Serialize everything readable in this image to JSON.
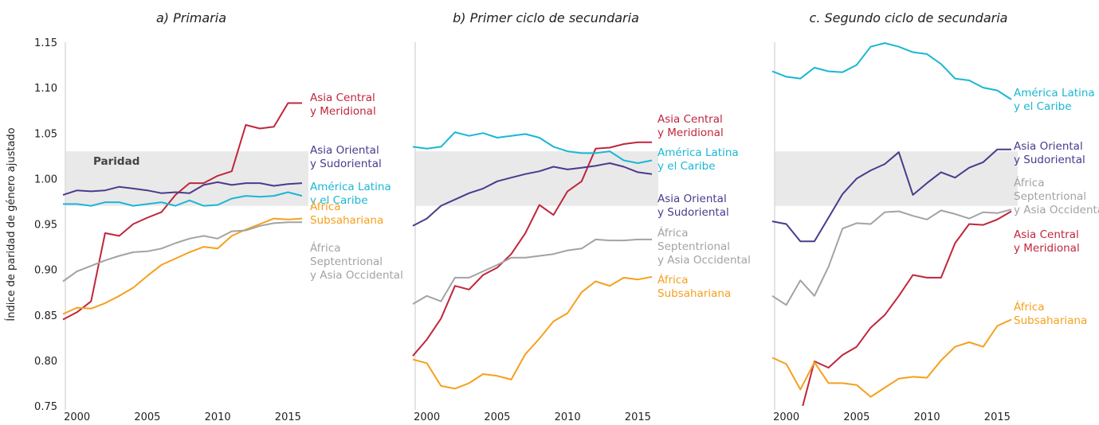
{
  "chart_data": [
    {
      "type": "line",
      "title": "a) Primaria",
      "y_label": "Índice de paridad de género ajustado",
      "annotation": "Paridad",
      "x": [
        1999,
        2000,
        2001,
        2002,
        2003,
        2004,
        2005,
        2006,
        2007,
        2008,
        2009,
        2010,
        2011,
        2012,
        2013,
        2014,
        2015,
        2016
      ],
      "xlim": [
        1999,
        2016
      ],
      "xticks": [
        2000,
        2005,
        2010,
        2015
      ],
      "ylim": [
        0.75,
        1.15
      ],
      "yticks": [
        0.75,
        {
          "value": 0.8,
          "label": "0.80"
        },
        0.85,
        {
          "value": 0.9,
          "label": "0.90"
        },
        0.95,
        {
          "value": 1.0,
          "label": "1.00"
        },
        1.05,
        {
          "value": 1.1,
          "label": "1.10"
        },
        1.15
      ],
      "band": [
        0.97,
        1.03
      ],
      "series": [
        {
          "name": "Asia Central y Meridional",
          "color": "#c0263c",
          "values": [
            0.845,
            0.853,
            0.865,
            0.94,
            0.937,
            0.95,
            0.957,
            0.963,
            0.982,
            0.995,
            0.995,
            1.003,
            1.008,
            1.059,
            1.055,
            1.057,
            1.083,
            1.083
          ]
        },
        {
          "name": "Asia Oriental y Sudoriental",
          "color": "#4b3a8c",
          "values": [
            0.982,
            0.987,
            0.986,
            0.987,
            0.991,
            0.989,
            0.987,
            0.984,
            0.985,
            0.984,
            0.993,
            0.996,
            0.993,
            0.995,
            0.995,
            0.992,
            0.994,
            0.995
          ]
        },
        {
          "name": "América Latina y el Caribe",
          "color": "#1ab7d3",
          "values": [
            0.972,
            0.972,
            0.97,
            0.974,
            0.974,
            0.97,
            0.972,
            0.974,
            0.97,
            0.976,
            0.97,
            0.971,
            0.978,
            0.981,
            0.98,
            0.981,
            0.985,
            0.981
          ]
        },
        {
          "name": "África Subsahariana",
          "color": "#f5a01e",
          "values": [
            0.851,
            0.858,
            0.857,
            0.863,
            0.871,
            0.88,
            0.893,
            0.905,
            0.912,
            0.919,
            0.925,
            0.923,
            0.937,
            0.944,
            0.95,
            0.956,
            0.955,
            0.956
          ]
        },
        {
          "name": "África Septentrional y Asia Occidental",
          "color": "#a3a3a3",
          "values": [
            0.887,
            0.898,
            0.904,
            0.91,
            0.915,
            0.919,
            0.92,
            0.923,
            0.929,
            0.934,
            0.937,
            0.934,
            0.942,
            0.943,
            0.948,
            0.951,
            0.952,
            0.952
          ]
        }
      ]
    },
    {
      "type": "line",
      "title": "b) Primer ciclo de secundaria",
      "x": [
        1999,
        2000,
        2001,
        2002,
        2003,
        2004,
        2005,
        2006,
        2007,
        2008,
        2009,
        2010,
        2011,
        2012,
        2013,
        2014,
        2015,
        2016
      ],
      "xlim": [
        1999,
        2016
      ],
      "xticks": [
        2000,
        2005,
        2010,
        2015
      ],
      "ylim": [
        0.75,
        1.15
      ],
      "band": [
        0.97,
        1.03
      ],
      "series": [
        {
          "name": "Asia Central y Meridional",
          "color": "#c0263c",
          "values": [
            0.805,
            0.823,
            0.846,
            0.882,
            0.878,
            0.894,
            0.902,
            0.917,
            0.94,
            0.971,
            0.96,
            0.986,
            0.997,
            1.033,
            1.034,
            1.038,
            1.04,
            1.04
          ]
        },
        {
          "name": "América Latina y el Caribe",
          "color": "#1ab7d3",
          "values": [
            1.035,
            1.033,
            1.035,
            1.051,
            1.047,
            1.05,
            1.045,
            1.047,
            1.049,
            1.045,
            1.035,
            1.03,
            1.028,
            1.028,
            1.03,
            1.02,
            1.017,
            1.02
          ]
        },
        {
          "name": "Asia Oriental y Sudoriental",
          "color": "#4b3a8c",
          "values": [
            0.948,
            0.956,
            0.97,
            0.977,
            0.984,
            0.989,
            0.997,
            1.001,
            1.005,
            1.008,
            1.013,
            1.01,
            1.012,
            1.014,
            1.017,
            1.013,
            1.007,
            1.005
          ]
        },
        {
          "name": "África Septentrional y Asia Occidental",
          "color": "#a3a3a3",
          "values": [
            0.862,
            0.871,
            0.865,
            0.891,
            0.891,
            0.898,
            0.905,
            0.913,
            0.913,
            0.915,
            0.917,
            0.921,
            0.923,
            0.933,
            0.932,
            0.932,
            0.933,
            0.933
          ]
        },
        {
          "name": "África Subsahariana",
          "color": "#f5a01e",
          "values": [
            0.801,
            0.797,
            0.772,
            0.769,
            0.775,
            0.785,
            0.783,
            0.779,
            0.807,
            0.824,
            0.843,
            0.852,
            0.875,
            0.887,
            0.882,
            0.891,
            0.889,
            0.892
          ]
        }
      ]
    },
    {
      "type": "line",
      "title": "c. Segundo ciclo de secundaria",
      "x": [
        1999,
        2000,
        2001,
        2002,
        2003,
        2004,
        2005,
        2006,
        2007,
        2008,
        2009,
        2010,
        2011,
        2012,
        2013,
        2014,
        2015,
        2016
      ],
      "xlim": [
        1999,
        2016
      ],
      "xticks": [
        2000,
        2005,
        2010,
        2015
      ],
      "ylim": [
        0.75,
        1.15
      ],
      "band": [
        0.97,
        1.03
      ],
      "series": [
        {
          "name": "América Latina y el Caribe",
          "color": "#1ab7d3",
          "values": [
            1.118,
            1.112,
            1.11,
            1.122,
            1.118,
            1.117,
            1.125,
            1.145,
            1.149,
            1.145,
            1.139,
            1.137,
            1.126,
            1.11,
            1.108,
            1.1,
            1.097,
            1.087
          ]
        },
        {
          "name": "Asia Oriental y Sudoriental",
          "color": "#4b3a8c",
          "values": [
            0.953,
            0.95,
            0.931,
            0.931,
            0.957,
            0.983,
            1.0,
            1.009,
            1.016,
            1.029,
            0.982,
            0.995,
            1.007,
            1.001,
            1.012,
            1.018,
            1.032,
            1.032
          ]
        },
        {
          "name": "África Septentrional y Asia Occidental",
          "color": "#a3a3a3",
          "values": [
            0.871,
            0.861,
            0.888,
            0.871,
            0.903,
            0.945,
            0.951,
            0.95,
            0.963,
            0.964,
            0.959,
            0.955,
            0.965,
            0.961,
            0.956,
            0.963,
            0.962,
            0.966
          ]
        },
        {
          "name": "Asia Central y Meridional",
          "color": "#c0263c",
          "values": [
            null,
            null,
            0.74,
            0.799,
            0.792,
            0.806,
            0.815,
            0.836,
            0.85,
            0.871,
            0.894,
            0.891,
            0.891,
            0.929,
            0.95,
            0.949,
            0.955,
            0.964
          ]
        },
        {
          "name": "África Subsahariana",
          "color": "#f5a01e",
          "values": [
            0.803,
            0.796,
            0.768,
            0.798,
            0.775,
            0.775,
            0.773,
            0.76,
            0.77,
            0.78,
            0.782,
            0.781,
            0.8,
            0.815,
            0.82,
            0.815,
            0.838,
            0.845
          ]
        }
      ]
    }
  ]
}
